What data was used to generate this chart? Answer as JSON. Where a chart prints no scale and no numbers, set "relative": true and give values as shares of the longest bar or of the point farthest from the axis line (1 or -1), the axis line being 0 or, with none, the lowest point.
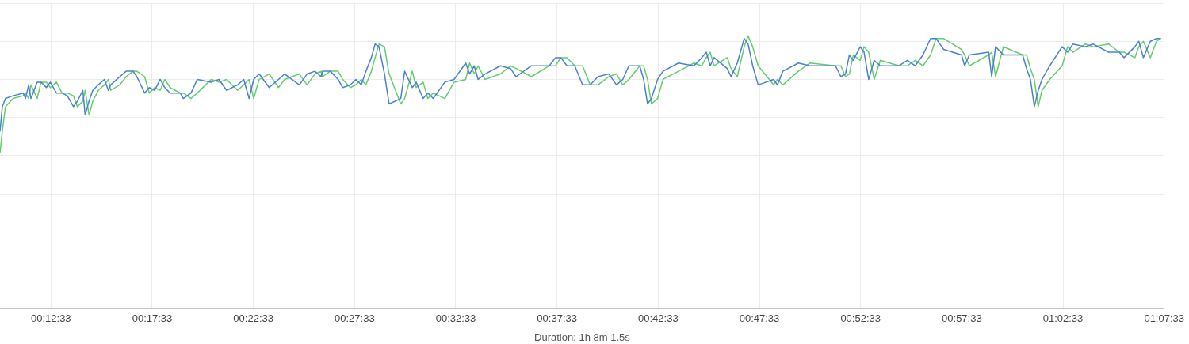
{
  "chart_data": {
    "type": "line",
    "relative": true,
    "grid": true,
    "xlabel": "Duration: 1h 8m 1.5s",
    "xlim": [
      0.1672,
      1.1259
    ],
    "xticks": [
      {
        "value": 0.209167,
        "label": "00:12:33"
      },
      {
        "value": 0.2925,
        "label": "00:17:33"
      },
      {
        "value": 0.375833,
        "label": "00:22:33"
      },
      {
        "value": 0.459167,
        "label": "00:27:33"
      },
      {
        "value": 0.5425,
        "label": "00:32:33"
      },
      {
        "value": 0.625833,
        "label": "00:37:33"
      },
      {
        "value": 0.709167,
        "label": "00:42:33"
      },
      {
        "value": 0.7925,
        "label": "00:47:33"
      },
      {
        "value": 0.875833,
        "label": "00:52:33"
      },
      {
        "value": 0.959167,
        "label": "00:57:33"
      },
      {
        "value": 1.0425,
        "label": "01:02:33"
      },
      {
        "value": 1.125833,
        "label": "01:07:33"
      }
    ],
    "x": [
      0.1672,
      0.1691,
      0.1717,
      0.178,
      0.1863,
      0.1882,
      0.1908,
      0.1927,
      0.1978,
      0.201,
      0.2054,
      0.2086,
      0.2137,
      0.2182,
      0.2226,
      0.2277,
      0.2309,
      0.2354,
      0.2373,
      0.2405,
      0.2436,
      0.2481,
      0.2532,
      0.2564,
      0.2583,
      0.2659,
      0.271,
      0.2768,
      0.2799,
      0.2863,
      0.2901,
      0.2946,
      0.2991,
      0.3029,
      0.3073,
      0.3156,
      0.3182,
      0.3245,
      0.3296,
      0.3411,
      0.3475,
      0.3538,
      0.3628,
      0.3679,
      0.3723,
      0.3761,
      0.3806,
      0.3889,
      0.3965,
      0.4016,
      0.4137,
      0.4201,
      0.4265,
      0.4316,
      0.4328,
      0.4392,
      0.4456,
      0.4494,
      0.4558,
      0.4602,
      0.4647,
      0.4685,
      0.473,
      0.4761,
      0.4793,
      0.4838,
      0.4876,
      0.4972,
      0.5004,
      0.5067,
      0.5099,
      0.5156,
      0.5195,
      0.5239,
      0.5335,
      0.5411,
      0.5507,
      0.5539,
      0.5577,
      0.5609,
      0.5666,
      0.5793,
      0.5876,
      0.5921,
      0.6048,
      0.6195,
      0.6246,
      0.629,
      0.6341,
      0.6405,
      0.6469,
      0.6532,
      0.6596,
      0.6685,
      0.6749,
      0.68,
      0.6851,
      0.694,
      0.6972,
      0.7004,
      0.7036,
      0.7087,
      0.7131,
      0.7259,
      0.7386,
      0.745,
      0.7488,
      0.752,
      0.7552,
      0.766,
      0.7692,
      0.7743,
      0.78,
      0.7832,
      0.787,
      0.7915,
      0.8042,
      0.8074,
      0.8118,
      0.8246,
      0.8341,
      0.8552,
      0.8596,
      0.8634,
      0.8666,
      0.8698,
      0.8755,
      0.8787,
      0.8825,
      0.887,
      0.8921,
      0.9074,
      0.9144,
      0.9208,
      0.9272,
      0.9335,
      0.938,
      0.9443,
      0.959,
      0.9615,
      0.9654,
      0.9813,
      0.9838,
      0.987,
      0.9934,
      1.0093,
      1.0125,
      1.0157,
      1.0189,
      1.0221,
      1.0252,
      1.0316,
      1.0418,
      1.0463,
      1.0507,
      1.0609,
      1.0673,
      1.08,
      1.0889,
      1.0928,
      1.1017,
      1.1049,
      1.1087,
      1.1144,
      1.1195,
      1.1227
    ],
    "series": [
      {
        "color": "#4a80d0",
        "values": [
          0.65,
          0.74,
          0.77,
          0.78,
          0.79,
          0.77,
          0.82,
          0.77,
          0.83,
          0.83,
          0.81,
          0.83,
          0.79,
          0.79,
          0.78,
          0.74,
          0.76,
          0.8,
          0.71,
          0.76,
          0.8,
          0.82,
          0.84,
          0.8,
          0.82,
          0.85,
          0.87,
          0.87,
          0.85,
          0.79,
          0.81,
          0.8,
          0.84,
          0.81,
          0.79,
          0.79,
          0.77,
          0.79,
          0.84,
          0.83,
          0.84,
          0.8,
          0.82,
          0.84,
          0.77,
          0.84,
          0.86,
          0.81,
          0.84,
          0.86,
          0.82,
          0.86,
          0.87,
          0.85,
          0.87,
          0.87,
          0.84,
          0.81,
          0.82,
          0.84,
          0.82,
          0.87,
          0.92,
          0.97,
          0.96,
          0.86,
          0.75,
          0.77,
          0.87,
          0.81,
          0.83,
          0.77,
          0.79,
          0.77,
          0.83,
          0.84,
          0.9,
          0.86,
          0.89,
          0.84,
          0.86,
          0.89,
          0.88,
          0.85,
          0.89,
          0.89,
          0.92,
          0.92,
          0.89,
          0.89,
          0.82,
          0.82,
          0.85,
          0.86,
          0.82,
          0.84,
          0.89,
          0.89,
          0.84,
          0.75,
          0.77,
          0.84,
          0.87,
          0.9,
          0.89,
          0.92,
          0.94,
          0.89,
          0.92,
          0.88,
          0.85,
          0.9,
          0.99,
          0.97,
          0.89,
          0.82,
          0.84,
          0.82,
          0.87,
          0.9,
          0.89,
          0.89,
          0.85,
          0.86,
          0.93,
          0.91,
          0.96,
          0.94,
          0.84,
          0.91,
          0.89,
          0.89,
          0.91,
          0.89,
          0.93,
          0.99,
          0.99,
          0.95,
          0.93,
          0.89,
          0.93,
          0.94,
          0.85,
          0.96,
          0.93,
          0.93,
          0.88,
          0.84,
          0.74,
          0.8,
          0.84,
          0.89,
          0.96,
          0.94,
          0.97,
          0.96,
          0.97,
          0.94,
          0.94,
          0.92,
          0.96,
          0.98,
          0.92,
          0.98,
          0.99,
          0.99
        ]
      },
      {
        "color": "#62cf6a",
        "values": [
          0.57,
          0.65,
          0.74,
          0.77,
          0.78,
          0.79,
          0.77,
          0.82,
          0.77,
          0.83,
          0.83,
          0.81,
          0.83,
          0.79,
          0.79,
          0.78,
          0.74,
          0.76,
          0.8,
          0.71,
          0.76,
          0.8,
          0.82,
          0.84,
          0.8,
          0.82,
          0.85,
          0.87,
          0.87,
          0.85,
          0.79,
          0.81,
          0.8,
          0.84,
          0.81,
          0.79,
          0.79,
          0.77,
          0.79,
          0.84,
          0.83,
          0.84,
          0.8,
          0.82,
          0.84,
          0.77,
          0.84,
          0.86,
          0.81,
          0.84,
          0.86,
          0.82,
          0.86,
          0.87,
          0.85,
          0.87,
          0.87,
          0.84,
          0.81,
          0.82,
          0.84,
          0.82,
          0.87,
          0.92,
          0.97,
          0.96,
          0.86,
          0.75,
          0.77,
          0.87,
          0.81,
          0.83,
          0.77,
          0.79,
          0.77,
          0.83,
          0.84,
          0.9,
          0.86,
          0.89,
          0.84,
          0.86,
          0.89,
          0.88,
          0.85,
          0.89,
          0.89,
          0.92,
          0.92,
          0.89,
          0.89,
          0.82,
          0.82,
          0.85,
          0.86,
          0.82,
          0.84,
          0.89,
          0.89,
          0.84,
          0.75,
          0.77,
          0.84,
          0.87,
          0.9,
          0.89,
          0.92,
          0.94,
          0.89,
          0.92,
          0.88,
          0.85,
          0.96,
          1.0,
          0.96,
          0.89,
          0.82,
          0.84,
          0.82,
          0.87,
          0.9,
          0.89,
          0.89,
          0.85,
          0.86,
          0.93,
          0.91,
          0.96,
          0.94,
          0.84,
          0.91,
          0.89,
          0.89,
          0.91,
          0.89,
          0.93,
          0.99,
          0.99,
          0.95,
          0.93,
          0.89,
          0.93,
          0.94,
          0.85,
          0.96,
          0.93,
          0.93,
          0.88,
          0.84,
          0.74,
          0.8,
          0.84,
          0.89,
          0.96,
          0.94,
          0.97,
          0.96,
          0.97,
          0.94,
          0.94,
          0.92,
          0.96,
          0.98,
          0.92,
          0.98,
          0.99
        ]
      }
    ]
  }
}
